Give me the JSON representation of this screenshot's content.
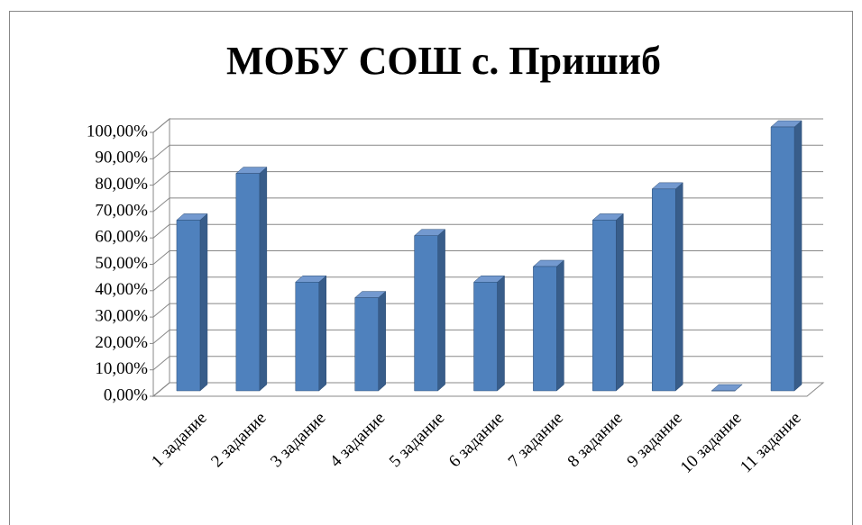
{
  "chart_data": {
    "type": "bar3d",
    "title": "МОБУ СОШ с. Пришиб",
    "categories": [
      "1 задание",
      "2 задание",
      "3 задание",
      "4 задание",
      "5 задание",
      "6 задание",
      "7 задание",
      "8 задание",
      "9 задание",
      "10 задание",
      "11 задание"
    ],
    "values": [
      64.7,
      82.4,
      41.2,
      35.3,
      58.8,
      41.2,
      47.1,
      64.7,
      76.5,
      0,
      100
    ],
    "color": "#4f81bd",
    "ylim": [
      0,
      100
    ],
    "yticks": [
      {
        "value": 0,
        "label": "0,00%"
      },
      {
        "value": 10,
        "label": "10,00%"
      },
      {
        "value": 20,
        "label": "20,00%"
      },
      {
        "value": 30,
        "label": "30,00%"
      },
      {
        "value": 40,
        "label": "40,00%"
      },
      {
        "value": 50,
        "label": "50,00%"
      },
      {
        "value": 60,
        "label": "60,00%"
      },
      {
        "value": 70,
        "label": "70,00%"
      },
      {
        "value": 80,
        "label": "80,00%"
      },
      {
        "value": 90,
        "label": "90,00%"
      },
      {
        "value": 100,
        "label": "100,00%"
      }
    ],
    "grid": true
  }
}
